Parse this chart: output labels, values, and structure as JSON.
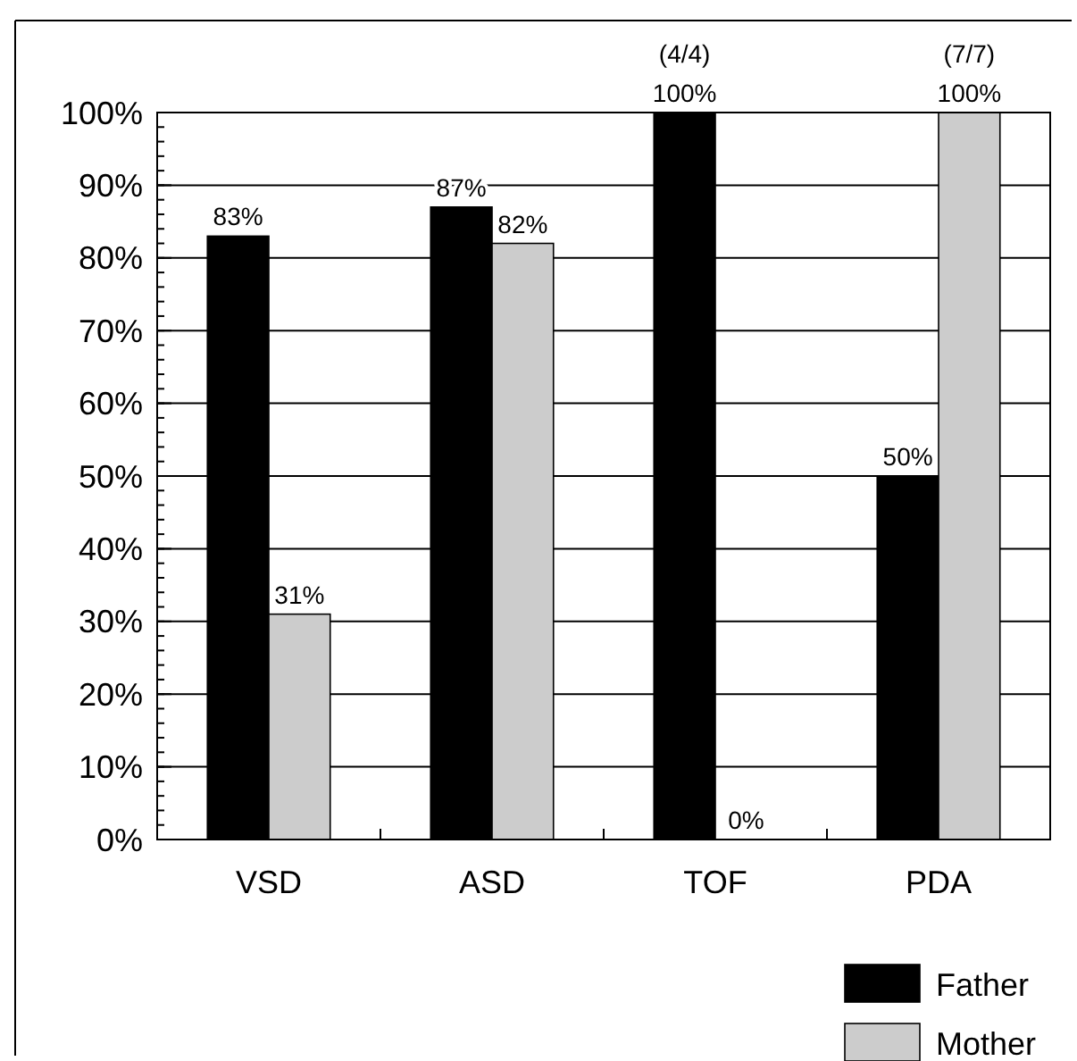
{
  "chart_data": {
    "type": "bar",
    "categories": [
      "VSD",
      "ASD",
      "TOF",
      "PDA"
    ],
    "series": [
      {
        "name": "Father",
        "color": "#000000",
        "values": [
          83,
          87,
          100,
          50
        ]
      },
      {
        "name": "Mother",
        "color": "#cccccc",
        "values": [
          31,
          82,
          0,
          100
        ]
      }
    ],
    "ylim": [
      0,
      100
    ],
    "yticks": [
      {
        "value": 0,
        "label": "0%"
      },
      {
        "value": 10,
        "label": "10%"
      },
      {
        "value": 20,
        "label": "20%"
      },
      {
        "value": 30,
        "label": "30%"
      },
      {
        "value": 40,
        "label": "40%"
      },
      {
        "value": 50,
        "label": "50%"
      },
      {
        "value": 60,
        "label": "60%"
      },
      {
        "value": 70,
        "label": "70%"
      },
      {
        "value": 80,
        "label": "80%"
      },
      {
        "value": 90,
        "label": "90%"
      },
      {
        "value": 100,
        "label": "100%"
      }
    ],
    "value_labels": [
      [
        "83%",
        "87%",
        "100%",
        "50%"
      ],
      [
        "31%",
        "82%",
        "0%",
        "100%"
      ]
    ],
    "annotations": [
      {
        "text": "(4/4)",
        "x": "TOF",
        "y": 100
      },
      {
        "text": "(7/7)",
        "x": "PDA",
        "y": 100
      }
    ],
    "grid": "y",
    "legend": "bottom right"
  }
}
